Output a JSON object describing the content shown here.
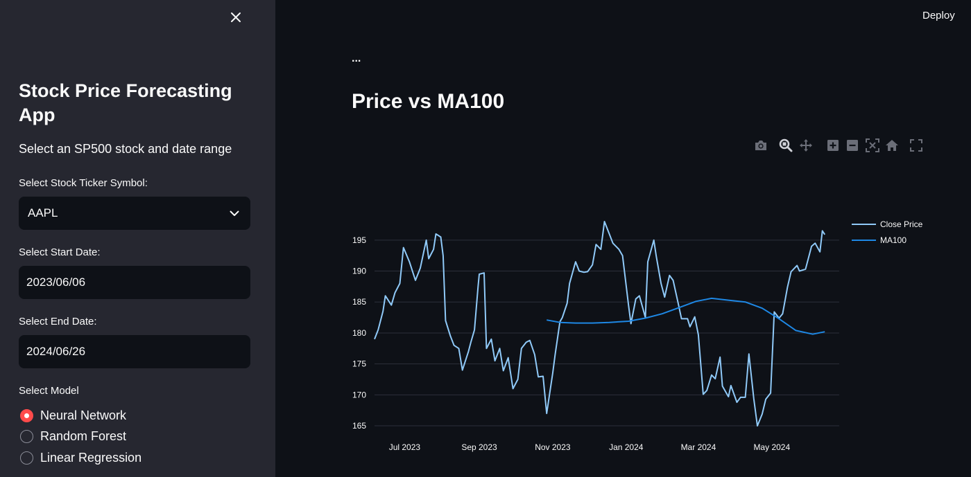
{
  "sidebar": {
    "title": "Stock Price Forecasting App",
    "subtitle": "Select an SP500 stock and date range",
    "ticker_label": "Select Stock Ticker Symbol:",
    "ticker_value": "AAPL",
    "start_label": "Select Start Date:",
    "start_value": "2023/06/06",
    "end_label": "Select End Date:",
    "end_value": "2024/06/26",
    "model_label": "Select Model",
    "models": [
      {
        "label": "Neural Network",
        "selected": true
      },
      {
        "label": "Random Forest",
        "selected": false
      },
      {
        "label": "Linear Regression",
        "selected": false
      }
    ]
  },
  "header": {
    "deploy_label": "Deploy",
    "ellipsis": "..."
  },
  "main": {
    "title": "Price vs MA100"
  },
  "modebar": [
    "camera-icon",
    "zoom-icon",
    "pan-icon",
    "zoom-in-icon",
    "zoom-out-icon",
    "autoscale-icon",
    "home-icon",
    "fullscreen-icon"
  ],
  "colors": {
    "sidebar_bg": "#262730",
    "main_bg": "#0e1117",
    "accent": "#ff4b4b",
    "close_price": "#90caf9",
    "ma100": "#1e88e5"
  },
  "chart_data": {
    "type": "line",
    "legend_position": "top-right",
    "grid": "horizontal",
    "x_ticks": [
      "Jul 2023",
      "Sep 2023",
      "Nov 2023",
      "Jan 2024",
      "Mar 2024",
      "May 2024"
    ],
    "y_ticks": [
      165,
      170,
      175,
      180,
      185,
      190,
      195
    ],
    "xlim": [
      "2023-06-06",
      "2024-06-26"
    ],
    "ylim": [
      164,
      198
    ],
    "series": [
      {
        "name": "Close Price",
        "color": "#90caf9",
        "points": [
          [
            "2023-06-06",
            179.0
          ],
          [
            "2023-06-09",
            180.5
          ],
          [
            "2023-06-13",
            183.5
          ],
          [
            "2023-06-15",
            186.0
          ],
          [
            "2023-06-20",
            184.5
          ],
          [
            "2023-06-23",
            186.5
          ],
          [
            "2023-06-27",
            188.0
          ],
          [
            "2023-06-30",
            193.8
          ],
          [
            "2023-07-05",
            191.5
          ],
          [
            "2023-07-10",
            188.5
          ],
          [
            "2023-07-14",
            190.5
          ],
          [
            "2023-07-19",
            195.0
          ],
          [
            "2023-07-21",
            192.0
          ],
          [
            "2023-07-25",
            193.5
          ],
          [
            "2023-07-27",
            196.0
          ],
          [
            "2023-07-31",
            195.5
          ],
          [
            "2023-08-02",
            192.5
          ],
          [
            "2023-08-04",
            182.0
          ],
          [
            "2023-08-08",
            179.5
          ],
          [
            "2023-08-11",
            178.0
          ],
          [
            "2023-08-15",
            177.5
          ],
          [
            "2023-08-18",
            174.0
          ],
          [
            "2023-08-23",
            177.0
          ],
          [
            "2023-08-25",
            178.5
          ],
          [
            "2023-08-28",
            180.5
          ],
          [
            "2023-08-31",
            187.5
          ],
          [
            "2023-09-01",
            189.5
          ],
          [
            "2023-09-05",
            189.7
          ],
          [
            "2023-09-07",
            177.5
          ],
          [
            "2023-09-11",
            179.0
          ],
          [
            "2023-09-14",
            175.5
          ],
          [
            "2023-09-18",
            177.5
          ],
          [
            "2023-09-21",
            173.9
          ],
          [
            "2023-09-25",
            176.0
          ],
          [
            "2023-09-29",
            171.0
          ],
          [
            "2023-10-03",
            172.5
          ],
          [
            "2023-10-06",
            177.5
          ],
          [
            "2023-10-10",
            178.5
          ],
          [
            "2023-10-13",
            178.8
          ],
          [
            "2023-10-17",
            176.5
          ],
          [
            "2023-10-20",
            172.9
          ],
          [
            "2023-10-24",
            173.0
          ],
          [
            "2023-10-27",
            167.0
          ],
          [
            "2023-11-01",
            173.5
          ],
          [
            "2023-11-03",
            176.5
          ],
          [
            "2023-11-07",
            181.8
          ],
          [
            "2023-11-09",
            182.5
          ],
          [
            "2023-11-13",
            184.8
          ],
          [
            "2023-11-15",
            188.0
          ],
          [
            "2023-11-20",
            191.5
          ],
          [
            "2023-11-23",
            190.0
          ],
          [
            "2023-11-27",
            189.8
          ],
          [
            "2023-11-30",
            189.9
          ],
          [
            "2023-12-04",
            191.0
          ],
          [
            "2023-12-07",
            194.3
          ],
          [
            "2023-12-11",
            193.5
          ],
          [
            "2023-12-14",
            198.0
          ],
          [
            "2023-12-18",
            196.0
          ],
          [
            "2023-12-21",
            194.5
          ],
          [
            "2023-12-26",
            193.5
          ],
          [
            "2023-12-29",
            192.5
          ],
          [
            "2024-01-03",
            184.5
          ],
          [
            "2024-01-05",
            181.5
          ],
          [
            "2024-01-09",
            185.5
          ],
          [
            "2024-01-12",
            186.0
          ],
          [
            "2024-01-17",
            182.5
          ],
          [
            "2024-01-19",
            191.5
          ],
          [
            "2024-01-24",
            195.0
          ],
          [
            "2024-01-26",
            192.4
          ],
          [
            "2024-01-30",
            188.0
          ],
          [
            "2024-02-02",
            185.8
          ],
          [
            "2024-02-06",
            189.3
          ],
          [
            "2024-02-09",
            188.5
          ],
          [
            "2024-02-13",
            185.0
          ],
          [
            "2024-02-16",
            182.3
          ],
          [
            "2024-02-21",
            182.3
          ],
          [
            "2024-02-23",
            181.0
          ],
          [
            "2024-02-27",
            182.6
          ],
          [
            "2024-03-01",
            179.7
          ],
          [
            "2024-03-05",
            170.1
          ],
          [
            "2024-03-08",
            170.7
          ],
          [
            "2024-03-12",
            173.2
          ],
          [
            "2024-03-15",
            172.6
          ],
          [
            "2024-03-19",
            176.1
          ],
          [
            "2024-03-21",
            171.4
          ],
          [
            "2024-03-26",
            169.7
          ],
          [
            "2024-03-28",
            171.5
          ],
          [
            "2024-04-02",
            168.8
          ],
          [
            "2024-04-05",
            169.6
          ],
          [
            "2024-04-09",
            169.6
          ],
          [
            "2024-04-12",
            176.6
          ],
          [
            "2024-04-16",
            169.4
          ],
          [
            "2024-04-19",
            165.0
          ],
          [
            "2024-04-23",
            166.9
          ],
          [
            "2024-04-26",
            169.3
          ],
          [
            "2024-04-30",
            170.3
          ],
          [
            "2024-05-03",
            183.4
          ],
          [
            "2024-05-07",
            182.4
          ],
          [
            "2024-05-10",
            183.1
          ],
          [
            "2024-05-14",
            187.4
          ],
          [
            "2024-05-17",
            189.9
          ],
          [
            "2024-05-22",
            190.9
          ],
          [
            "2024-05-24",
            190.0
          ],
          [
            "2024-05-29",
            190.3
          ],
          [
            "2024-06-03",
            194.0
          ],
          [
            "2024-06-06",
            194.5
          ],
          [
            "2024-06-10",
            193.1
          ],
          [
            "2024-06-12",
            196.5
          ],
          [
            "2024-06-14",
            195.9
          ]
        ]
      },
      {
        "name": "MA100",
        "color": "#1e88e5",
        "points": [
          [
            "2023-10-27",
            182.1
          ],
          [
            "2023-11-07",
            181.7
          ],
          [
            "2023-11-20",
            181.6
          ],
          [
            "2023-12-04",
            181.6
          ],
          [
            "2023-12-18",
            181.7
          ],
          [
            "2024-01-03",
            181.9
          ],
          [
            "2024-01-17",
            182.4
          ],
          [
            "2024-01-31",
            183.1
          ],
          [
            "2024-02-14",
            184.1
          ],
          [
            "2024-02-28",
            185.1
          ],
          [
            "2024-03-12",
            185.6
          ],
          [
            "2024-03-26",
            185.3
          ],
          [
            "2024-04-09",
            185.0
          ],
          [
            "2024-04-23",
            184.0
          ],
          [
            "2024-05-07",
            182.3
          ],
          [
            "2024-05-21",
            180.4
          ],
          [
            "2024-06-04",
            179.8
          ],
          [
            "2024-06-14",
            180.2
          ]
        ]
      }
    ]
  }
}
